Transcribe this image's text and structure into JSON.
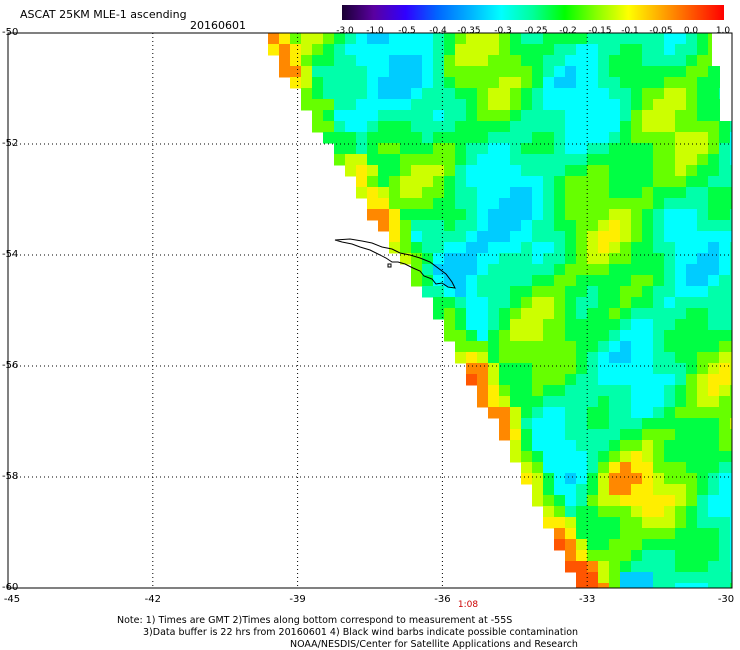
{
  "header": {
    "title": "ASCAT 25KM MLE-1 ascending",
    "date": "20160601"
  },
  "colorbar": {
    "labels": [
      "-3.0",
      "-1.0",
      "-0.5",
      "-0.4",
      "-0.35",
      "-0.3",
      "-0.25",
      "-0.2",
      "-0.15",
      "-0.1",
      "-0.05",
      "0.0",
      "1.0"
    ],
    "colors": [
      "#1a0033",
      "#5a00a0",
      "#3000ff",
      "#0066ff",
      "#00b0ff",
      "#00ffff",
      "#00ff99",
      "#00ff00",
      "#88ff00",
      "#ffff00",
      "#ffaa00",
      "#ff5500",
      "#ff0000"
    ]
  },
  "map": {
    "lat_labels": [
      "-50",
      "-52",
      "-54",
      "-56",
      "-58",
      "-60"
    ],
    "lon_labels": [
      "-45",
      "-42",
      "-39",
      "-36",
      "-33",
      "-30"
    ],
    "time_label": "1:08",
    "lat_range": [
      -60,
      -50
    ],
    "lon_range": [
      -45,
      -30
    ],
    "grid": true
  },
  "notes": {
    "line1": "Note: 1) Times are GMT 2)Times along bottom correspond to measurement at -55S",
    "line2": "3)Data buffer is 22 hrs from 20160601 4) Black wind barbs indicate possible contamination",
    "line3": "NOAA/NESDIS/Center for Satellite Applications and Research"
  }
}
